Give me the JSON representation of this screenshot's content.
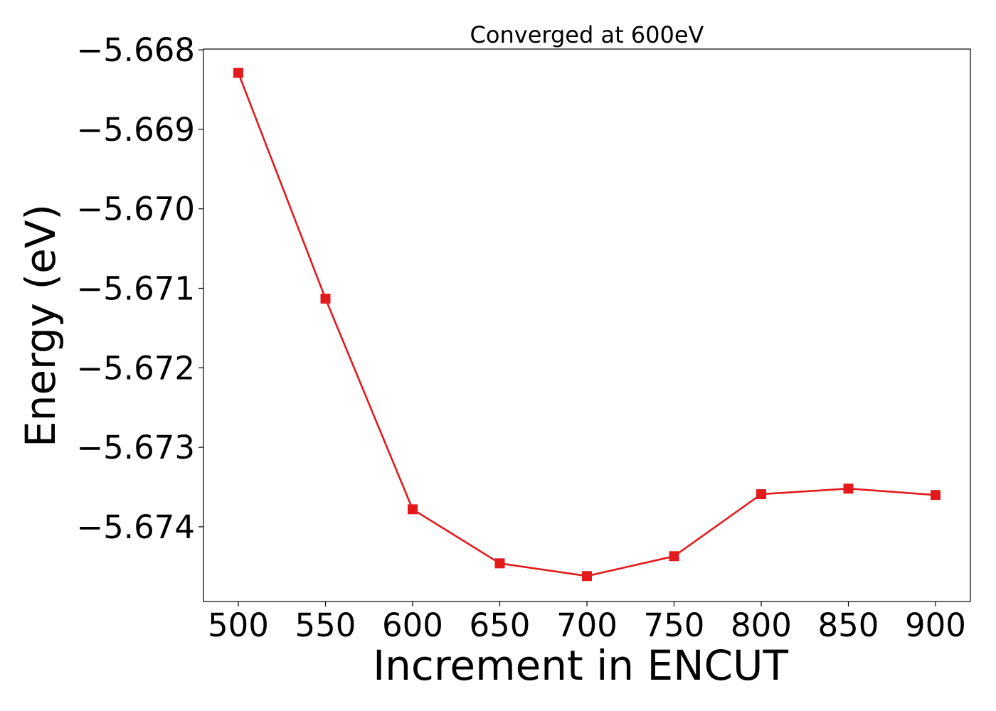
{
  "chart_data": {
    "type": "line",
    "title": "Converged at 600eV",
    "xlabel": "Increment in ENCUT",
    "ylabel": "Energy (eV)",
    "x": [
      500,
      550,
      600,
      650,
      700,
      750,
      800,
      850,
      900
    ],
    "series": [
      {
        "values": [
          -5.66829,
          -5.67113,
          -5.67378,
          -5.67446,
          -5.67462,
          -5.67437,
          -5.67359,
          -5.67352,
          -5.6736
        ]
      }
    ],
    "xticks": [
      500,
      550,
      600,
      650,
      700,
      750,
      800,
      850,
      900
    ],
    "xtick_labels": [
      "500",
      "550",
      "600",
      "650",
      "700",
      "750",
      "800",
      "850",
      "900"
    ],
    "yticks": [
      -5.668,
      -5.669,
      -5.67,
      -5.671,
      -5.672,
      -5.673,
      -5.674
    ],
    "ytick_labels": [
      "−5.668",
      "−5.669",
      "−5.670",
      "−5.671",
      "−5.672",
      "−5.673",
      "−5.674"
    ],
    "xlim": [
      480,
      920
    ],
    "ylim": [
      -5.67494,
      -5.66799
    ],
    "grid": false,
    "marker": "square",
    "line_color": "#e31a1c"
  }
}
